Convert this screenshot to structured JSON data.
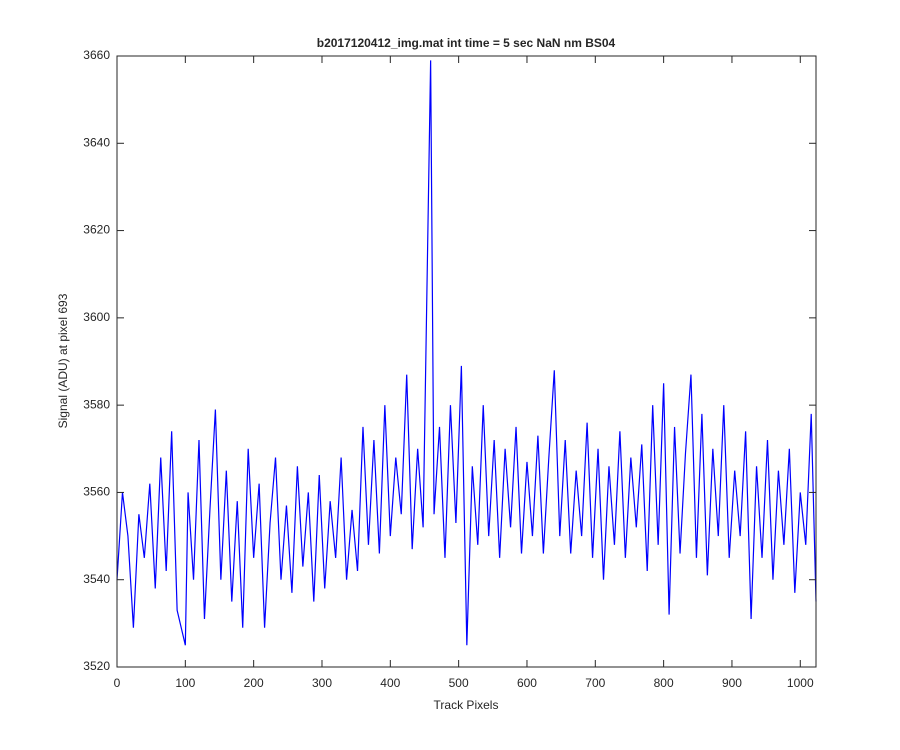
{
  "chart_data": {
    "type": "line",
    "title": "b2017120412_img.mat int time = 5 sec  NaN nm BS04",
    "xlabel": "Track Pixels",
    "ylabel": "Signal (ADU) at pixel 693",
    "x": [
      0,
      8,
      16,
      24,
      32,
      40,
      48,
      56,
      64,
      72,
      80,
      88,
      100,
      104,
      112,
      120,
      128,
      136,
      144,
      152,
      160,
      168,
      176,
      184,
      192,
      200,
      208,
      216,
      224,
      232,
      240,
      248,
      256,
      264,
      272,
      280,
      288,
      296,
      304,
      312,
      320,
      328,
      336,
      344,
      352,
      360,
      368,
      376,
      384,
      392,
      400,
      408,
      416,
      424,
      432,
      440,
      448,
      459,
      464,
      472,
      480,
      488,
      496,
      504,
      512,
      520,
      528,
      536,
      544,
      552,
      560,
      568,
      576,
      584,
      592,
      600,
      608,
      616,
      624,
      632,
      640,
      648,
      656,
      664,
      672,
      680,
      688,
      696,
      704,
      712,
      720,
      728,
      736,
      744,
      752,
      760,
      768,
      776,
      784,
      792,
      800,
      808,
      816,
      824,
      832,
      840,
      848,
      856,
      864,
      872,
      880,
      888,
      896,
      904,
      912,
      920,
      928,
      936,
      944,
      952,
      960,
      968,
      976,
      984,
      992,
      1000,
      1008,
      1016,
      1023
    ],
    "series": [
      {
        "color": "#0000ff",
        "values": [
          3540,
          3560,
          3550,
          3529,
          3555,
          3545,
          3562,
          3538,
          3568,
          3542,
          3574,
          3533,
          3525,
          3560,
          3540,
          3572,
          3531,
          3556,
          3579,
          3540,
          3565,
          3535,
          3558,
          3529,
          3570,
          3545,
          3562,
          3529,
          3553,
          3568,
          3540,
          3557,
          3537,
          3566,
          3543,
          3560,
          3535,
          3564,
          3538,
          3558,
          3545,
          3568,
          3540,
          3556,
          3542,
          3575,
          3548,
          3572,
          3546,
          3580,
          3550,
          3568,
          3555,
          3587,
          3547,
          3570,
          3552,
          3659,
          3555,
          3575,
          3545,
          3580,
          3553,
          3589,
          3525,
          3566,
          3548,
          3580,
          3550,
          3572,
          3545,
          3570,
          3552,
          3575,
          3546,
          3567,
          3550,
          3573,
          3546,
          3568,
          3588,
          3550,
          3572,
          3546,
          3565,
          3550,
          3576,
          3545,
          3570,
          3540,
          3566,
          3548,
          3574,
          3545,
          3568,
          3552,
          3571,
          3542,
          3580,
          3548,
          3585,
          3532,
          3575,
          3546,
          3569,
          3587,
          3545,
          3578,
          3541,
          3570,
          3550,
          3580,
          3545,
          3565,
          3550,
          3574,
          3531,
          3566,
          3545,
          3572,
          3540,
          3565,
          3548,
          3570,
          3537,
          3560,
          3548,
          3578,
          3535
        ]
      }
    ],
    "xlim": [
      0,
      1023
    ],
    "xticks": [
      0,
      100,
      200,
      300,
      400,
      500,
      600,
      700,
      800,
      900,
      1000
    ],
    "ylim": [
      3520,
      3660
    ],
    "yticks": [
      3520,
      3540,
      3560,
      3580,
      3600,
      3620,
      3640,
      3660
    ],
    "grid": false
  }
}
